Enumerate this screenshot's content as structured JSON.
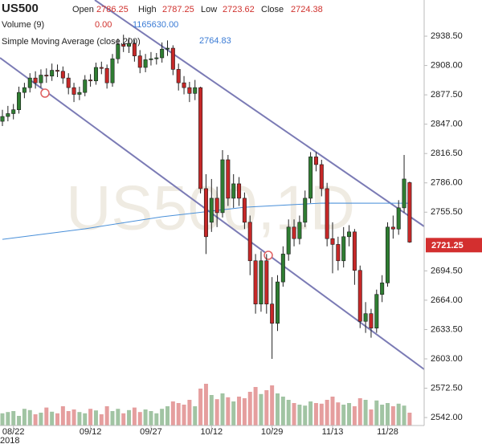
{
  "chart_data": {
    "type": "candlestick",
    "symbol": "US500",
    "ohlc_labels": [
      "Open",
      "High",
      "Low",
      "Close"
    ],
    "ohlc_values": [
      2786.25,
      2787.25,
      2723.62,
      2724.38
    ],
    "volume_label": "Volume (9)",
    "volume_values": [
      {
        "value": 0,
        "label": "0.00"
      },
      {
        "value": 1165630,
        "label": "1165630.00"
      }
    ],
    "sma_label": "Simple Moving Average (close,200)",
    "sma_value": 2764.83,
    "watermark": "US500,1D",
    "year_label": "2018",
    "categories": [
      null,
      null,
      "08/22",
      null,
      null,
      null,
      null,
      null,
      null,
      null,
      null,
      null,
      null,
      null,
      null,
      null,
      "09/12",
      null,
      null,
      null,
      null,
      null,
      null,
      null,
      null,
      null,
      null,
      "09/27",
      null,
      null,
      null,
      null,
      null,
      null,
      null,
      null,
      null,
      null,
      "10/12",
      null,
      null,
      null,
      null,
      null,
      null,
      null,
      null,
      null,
      null,
      "10/29",
      null,
      null,
      null,
      null,
      null,
      null,
      null,
      null,
      null,
      null,
      "11/13",
      null,
      null,
      null,
      null,
      null,
      null,
      null,
      null,
      null,
      "11/28",
      null,
      null,
      null,
      null
    ],
    "ohlc": [
      [
        2850,
        2862,
        2845,
        2855
      ],
      [
        2855,
        2866,
        2850,
        2858
      ],
      [
        2858,
        2868,
        2852,
        2862
      ],
      [
        2862,
        2886,
        2858,
        2880
      ],
      [
        2880,
        2890,
        2874,
        2885
      ],
      [
        2885,
        2900,
        2880,
        2895
      ],
      [
        2895,
        2902,
        2884,
        2890
      ],
      [
        2890,
        2904,
        2885,
        2898
      ],
      [
        2898,
        2905,
        2890,
        2897
      ],
      [
        2897,
        2910,
        2892,
        2903
      ],
      [
        2903,
        2909,
        2896,
        2902
      ],
      [
        2902,
        2907,
        2889,
        2895
      ],
      [
        2895,
        2900,
        2878,
        2885
      ],
      [
        2885,
        2890,
        2870,
        2878
      ],
      [
        2878,
        2886,
        2872,
        2880
      ],
      [
        2880,
        2898,
        2876,
        2893
      ],
      [
        2893,
        2899,
        2886,
        2892
      ],
      [
        2892,
        2911,
        2888,
        2906
      ],
      [
        2906,
        2912,
        2899,
        2905
      ],
      [
        2905,
        2909,
        2884,
        2890
      ],
      [
        2890,
        2920,
        2886,
        2915
      ],
      [
        2915,
        2936,
        2910,
        2930
      ],
      [
        2930,
        2940,
        2922,
        2928
      ],
      [
        2928,
        2937,
        2921,
        2931
      ],
      [
        2931,
        2935,
        2912,
        2918
      ],
      [
        2918,
        2924,
        2900,
        2906
      ],
      [
        2906,
        2920,
        2901,
        2914
      ],
      [
        2914,
        2922,
        2908,
        2915
      ],
      [
        2915,
        2921,
        2909,
        2916
      ],
      [
        2916,
        2932,
        2911,
        2925
      ],
      [
        2925,
        2934,
        2918,
        2926
      ],
      [
        2926,
        2929,
        2898,
        2904
      ],
      [
        2904,
        2910,
        2882,
        2890
      ],
      [
        2890,
        2897,
        2878,
        2885
      ],
      [
        2885,
        2891,
        2870,
        2879
      ],
      [
        2879,
        2893,
        2872,
        2885
      ],
      [
        2885,
        2886,
        2775,
        2780
      ],
      [
        2780,
        2795,
        2712,
        2730
      ],
      [
        2745,
        2790,
        2735,
        2770
      ],
      [
        2770,
        2782,
        2740,
        2755
      ],
      [
        2755,
        2820,
        2750,
        2810
      ],
      [
        2810,
        2815,
        2762,
        2770
      ],
      [
        2770,
        2795,
        2760,
        2785
      ],
      [
        2785,
        2792,
        2762,
        2770
      ],
      [
        2770,
        2776,
        2738,
        2745
      ],
      [
        2745,
        2752,
        2690,
        2705
      ],
      [
        2705,
        2712,
        2650,
        2660
      ],
      [
        2660,
        2715,
        2652,
        2705
      ],
      [
        2705,
        2712,
        2650,
        2660
      ],
      [
        2660,
        2688,
        2603,
        2640
      ],
      [
        2640,
        2690,
        2632,
        2683
      ],
      [
        2683,
        2720,
        2678,
        2712
      ],
      [
        2712,
        2748,
        2705,
        2740
      ],
      [
        2740,
        2748,
        2720,
        2728
      ],
      [
        2728,
        2752,
        2722,
        2745
      ],
      [
        2745,
        2778,
        2740,
        2770
      ],
      [
        2770,
        2818,
        2765,
        2813
      ],
      [
        2813,
        2818,
        2798,
        2805
      ],
      [
        2805,
        2810,
        2772,
        2780
      ],
      [
        2780,
        2786,
        2720,
        2728
      ],
      [
        2728,
        2745,
        2692,
        2722
      ],
      [
        2722,
        2730,
        2695,
        2705
      ],
      [
        2705,
        2740,
        2698,
        2730
      ],
      [
        2730,
        2742,
        2720,
        2735
      ],
      [
        2735,
        2738,
        2680,
        2695
      ],
      [
        2695,
        2700,
        2635,
        2642
      ],
      [
        2642,
        2662,
        2630,
        2650
      ],
      [
        2650,
        2655,
        2625,
        2635
      ],
      [
        2635,
        2675,
        2630,
        2670
      ],
      [
        2670,
        2690,
        2662,
        2682
      ],
      [
        2682,
        2745,
        2678,
        2740
      ],
      [
        2740,
        2752,
        2728,
        2738
      ],
      [
        2738,
        2768,
        2732,
        2760
      ],
      [
        2760,
        2815,
        2755,
        2790
      ],
      [
        2786.25,
        2787.25,
        2723.62,
        2724.38
      ]
    ],
    "volume": [
      380000,
      420000,
      450000,
      300000,
      520000,
      480000,
      350000,
      400000,
      560000,
      430000,
      380000,
      600000,
      450000,
      500000,
      420000,
      380000,
      520000,
      470000,
      350000,
      600000,
      450000,
      520000,
      380000,
      480000,
      560000,
      420000,
      500000,
      450000,
      380000,
      520000,
      600000,
      750000,
      700000,
      650000,
      800000,
      600000,
      1150000,
      1300000,
      950000,
      820000,
      1000000,
      880000,
      750000,
      900000,
      850000,
      1050000,
      1200000,
      980000,
      1100000,
      1250000,
      1000000,
      900000,
      800000,
      700000,
      650000,
      620000,
      750000,
      700000,
      680000,
      800000,
      900000,
      720000,
      650000,
      700000,
      600000,
      850000,
      800000,
      500000,
      780000,
      650000,
      700000,
      600000,
      680000,
      620000,
      400000
    ],
    "sma": {
      "x": [
        0,
        15,
        29,
        44,
        58,
        74
      ],
      "values": [
        2727.3,
        2738.2,
        2750.7,
        2760.7,
        2764.9,
        2764.83
      ]
    },
    "ylim": [
      2533.7,
      2976.1
    ],
    "yticks": [
      {
        "value": 2938.5,
        "label": "2938.50"
      },
      {
        "value": 2908,
        "label": "2908.00"
      },
      {
        "value": 2877.5,
        "label": "2877.50"
      },
      {
        "value": 2847,
        "label": "2847.00"
      },
      {
        "value": 2816.5,
        "label": "2816.50"
      },
      {
        "value": 2786,
        "label": "2786.00"
      },
      {
        "value": 2755.5,
        "label": "2755.50"
      },
      {
        "value": 2694.5,
        "label": "2694.50"
      },
      {
        "value": 2664,
        "label": "2664.00"
      },
      {
        "value": 2633.5,
        "label": "2633.50"
      },
      {
        "value": 2603,
        "label": "2603.00"
      },
      {
        "value": 2572.5,
        "label": "2572.50"
      },
      {
        "value": 2542,
        "label": "2542.00"
      }
    ],
    "volume_ylim": [
      0,
      1500000
    ],
    "last_price": 2721.25,
    "colors": {
      "up": "#2f7d32",
      "down": "#c62828",
      "sma": "#4a90d9",
      "last": "#d32f2f"
    }
  }
}
